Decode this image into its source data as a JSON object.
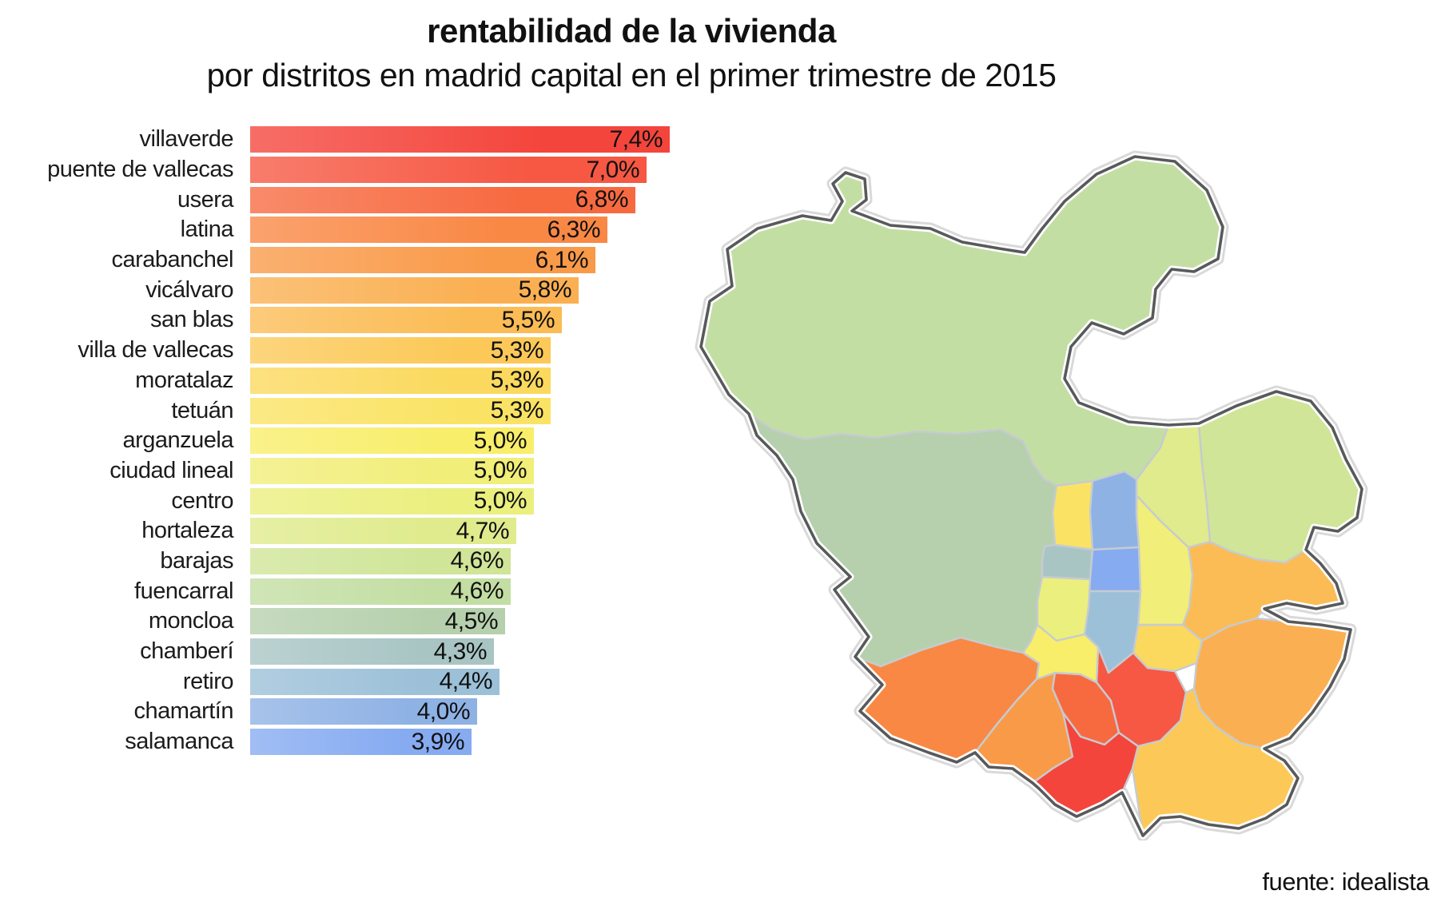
{
  "header": {
    "title": "rentabilidad de la vivienda",
    "subtitle": "por distritos en madrid capital en el primer trimestre de 2015"
  },
  "source_label": "fuente: idealista",
  "chart_data": {
    "type": "bar",
    "orientation": "horizontal",
    "title": "rentabilidad de la vivienda",
    "subtitle": "por distritos en madrid capital en el primer trimestre de 2015",
    "unit": "%",
    "xlim": [
      0,
      7.4
    ],
    "grid": false,
    "value_labels_inside_bar": true,
    "categories": [
      "villaverde",
      "puente de vallecas",
      "usera",
      "latina",
      "carabanchel",
      "vicálvaro",
      "san blas",
      "villa de vallecas",
      "moratalaz",
      "tetuán",
      "arganzuela",
      "ciudad lineal",
      "centro",
      "hortaleza",
      "barajas",
      "fuencarral",
      "moncloa",
      "chamberí",
      "retiro",
      "chamartín",
      "salamanca"
    ],
    "values": [
      7.4,
      7.0,
      6.8,
      6.3,
      6.1,
      5.8,
      5.5,
      5.3,
      5.3,
      5.3,
      5.0,
      5.0,
      5.0,
      4.7,
      4.6,
      4.6,
      4.5,
      4.3,
      4.4,
      4.0,
      3.9
    ],
    "labels": [
      "7,4%",
      "7,0%",
      "6,8%",
      "6,3%",
      "6,1%",
      "5,8%",
      "5,5%",
      "5,3%",
      "5,3%",
      "5,3%",
      "5,0%",
      "5,0%",
      "5,0%",
      "4,7%",
      "4,6%",
      "4,6%",
      "4,5%",
      "4,3%",
      "4,4%",
      "4,0%",
      "3,9%"
    ],
    "colors": [
      "#f4453c",
      "#f65843",
      "#f76a40",
      "#f98845",
      "#f99a49",
      "#fab052",
      "#fbbc55",
      "#fcc958",
      "#fbd95e",
      "#fae364",
      "#f8ee6a",
      "#f1ee79",
      "#ebef7e",
      "#dfeb8c",
      "#d0e598",
      "#c3dea3",
      "#b6d0ad",
      "#a8c5c4",
      "#9cc0d8",
      "#8fb2e5",
      "#86abf1"
    ]
  },
  "map": {
    "outline_color": "#58595b",
    "halo_color": "#d9d9d9",
    "inner_border_color": "#c6cbd0",
    "districts": [
      {
        "id": "fuencarral",
        "color": "#c3dea3"
      },
      {
        "id": "moncloa",
        "color": "#b6d0ad"
      },
      {
        "id": "latina",
        "color": "#f98845"
      },
      {
        "id": "carabanchel",
        "color": "#f99a49"
      },
      {
        "id": "usera",
        "color": "#f76a40"
      },
      {
        "id": "villaverde",
        "color": "#f4453c"
      },
      {
        "id": "puente-de-vallecas",
        "color": "#f65843"
      },
      {
        "id": "villa-de-vallecas",
        "color": "#fcc958"
      },
      {
        "id": "vicalvaro",
        "color": "#fab052"
      },
      {
        "id": "moratalaz",
        "color": "#fbd95e"
      },
      {
        "id": "san-blas",
        "color": "#fbbc55"
      },
      {
        "id": "ciudad-lineal",
        "color": "#f1ee79"
      },
      {
        "id": "hortaleza",
        "color": "#dfeb8c"
      },
      {
        "id": "barajas",
        "color": "#d0e598"
      },
      {
        "id": "tetuan",
        "color": "#fae364"
      },
      {
        "id": "chamartin",
        "color": "#8fb2e5"
      },
      {
        "id": "chamberi",
        "color": "#a8c5c4"
      },
      {
        "id": "salamanca",
        "color": "#86abf1"
      },
      {
        "id": "retiro",
        "color": "#9cc0d8"
      },
      {
        "id": "centro",
        "color": "#ebef7e"
      },
      {
        "id": "arganzuela",
        "color": "#f8ee6a"
      }
    ]
  }
}
